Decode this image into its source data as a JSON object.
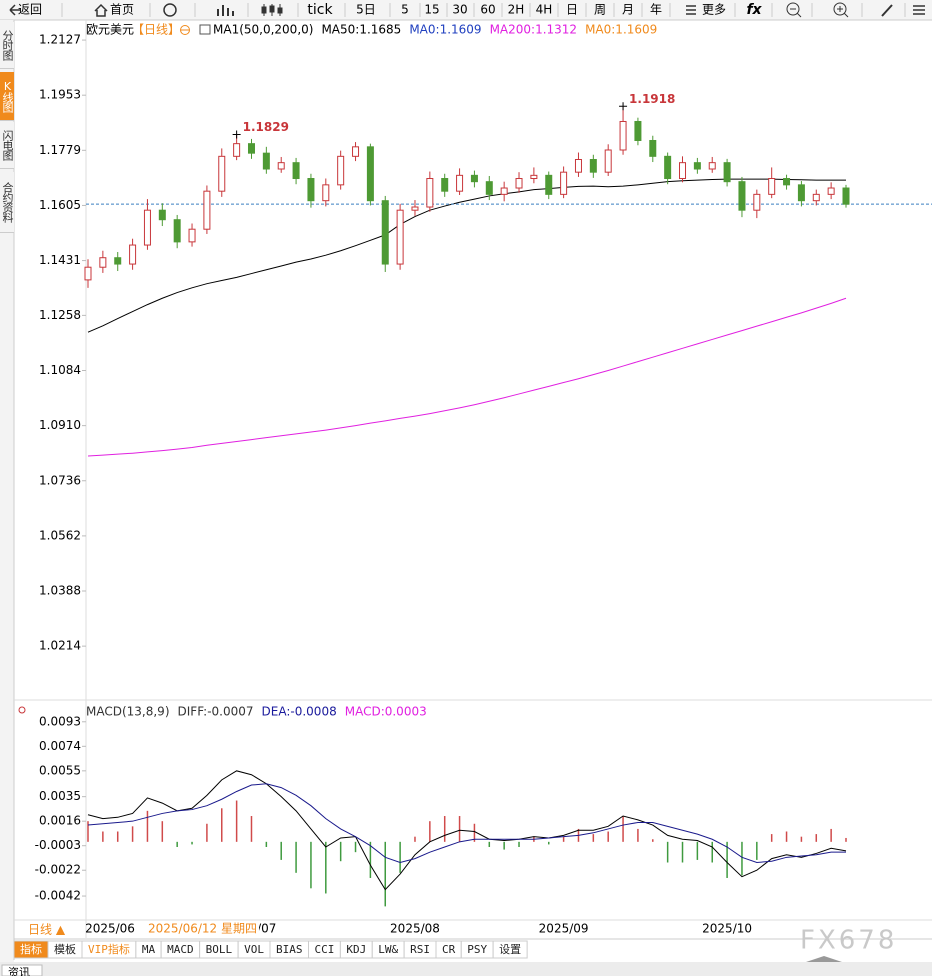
{
  "toolbar": [
    "返回",
    "首页",
    "tick",
    "5日",
    "5",
    "15",
    "30",
    "60",
    "2H",
    "4H",
    "日",
    "周",
    "月",
    "年",
    "更多"
  ],
  "sidebar": [
    "分时图",
    "K线图",
    "闪电图",
    "合约资料"
  ],
  "chart_data": [
    {
      "type": "candlestick",
      "title": "欧元美元",
      "period": "【日线】",
      "legend": [
        {
          "text": "MA1(50,0,200,0)",
          "color": "#000000"
        },
        {
          "text": "MA50:1.1685",
          "color": "#000000"
        },
        {
          "text": "MA0:1.1609",
          "color": "#1f3fbf"
        },
        {
          "text": "MA200:1.1312",
          "color": "#e020e0"
        },
        {
          "text": "MA0:1.1609",
          "color": "#f08a1c"
        }
      ],
      "categories": [
        "2025/06",
        null,
        null,
        null,
        null,
        null,
        null,
        null,
        null,
        null,
        null,
        "2025/07",
        null,
        null,
        null,
        null,
        null,
        null,
        null,
        null,
        null,
        null,
        "2025/08",
        null,
        null,
        null,
        null,
        null,
        null,
        null,
        null,
        null,
        "2025/09",
        null,
        null,
        null,
        null,
        null,
        null,
        null,
        null,
        null,
        null,
        "2025/10",
        null,
        null,
        null,
        null,
        null,
        null,
        null,
        null
      ],
      "open": [
        1.137,
        1.141,
        1.144,
        1.142,
        1.148,
        1.159,
        1.156,
        1.149,
        1.153,
        1.165,
        1.176,
        1.18,
        1.177,
        1.172,
        1.174,
        1.169,
        1.162,
        1.167,
        1.176,
        1.179,
        1.162,
        1.142,
        1.159,
        1.16,
        1.169,
        1.165,
        1.17,
        1.168,
        1.164,
        1.166,
        1.169,
        1.17,
        1.164,
        1.171,
        1.175,
        1.171,
        1.178,
        1.187,
        1.181,
        1.176,
        1.169,
        1.174,
        1.172,
        1.174,
        1.168,
        1.159,
        1.164,
        1.169,
        1.167,
        1.162,
        1.164,
        1.166
      ],
      "high": [
        1.1435,
        1.1462,
        1.1458,
        1.15,
        1.1625,
        1.1612,
        1.1575,
        1.1548,
        1.1668,
        1.1785,
        1.1829,
        1.1815,
        1.179,
        1.1758,
        1.1755,
        1.1705,
        1.169,
        1.1778,
        1.1805,
        1.18,
        1.1635,
        1.161,
        1.1622,
        1.1712,
        1.1705,
        1.1722,
        1.1715,
        1.1698,
        1.168,
        1.171,
        1.1725,
        1.1712,
        1.1728,
        1.1772,
        1.1765,
        1.1798,
        1.1918,
        1.1882,
        1.1825,
        1.1772,
        1.176,
        1.1755,
        1.1758,
        1.1752,
        1.1695,
        1.1655,
        1.1725,
        1.1702,
        1.1682,
        1.1655,
        1.1678,
        1.167
      ],
      "low": [
        1.1345,
        1.1392,
        1.1398,
        1.1402,
        1.1465,
        1.154,
        1.147,
        1.1475,
        1.1515,
        1.1632,
        1.1748,
        1.1752,
        1.1705,
        1.1708,
        1.1672,
        1.1598,
        1.1602,
        1.1655,
        1.1745,
        1.1605,
        1.1395,
        1.1402,
        1.1572,
        1.1585,
        1.1632,
        1.1638,
        1.1662,
        1.1622,
        1.1618,
        1.1645,
        1.1675,
        1.1625,
        1.1628,
        1.1695,
        1.1692,
        1.1698,
        1.1765,
        1.1795,
        1.1742,
        1.1672,
        1.1678,
        1.1705,
        1.1708,
        1.1665,
        1.1568,
        1.1565,
        1.1628,
        1.1655,
        1.1602,
        1.1605,
        1.1625,
        1.1598
      ],
      "close": [
        1.141,
        1.144,
        1.142,
        1.148,
        1.159,
        1.156,
        1.149,
        1.153,
        1.165,
        1.176,
        1.18,
        1.177,
        1.172,
        1.174,
        1.169,
        1.162,
        1.167,
        1.176,
        1.179,
        1.162,
        1.142,
        1.159,
        1.16,
        1.169,
        1.165,
        1.17,
        1.168,
        1.164,
        1.166,
        1.169,
        1.17,
        1.164,
        1.171,
        1.175,
        1.171,
        1.178,
        1.187,
        1.181,
        1.176,
        1.169,
        1.174,
        1.172,
        1.174,
        1.168,
        1.159,
        1.164,
        1.169,
        1.167,
        1.162,
        1.164,
        1.166,
        1.1609
      ],
      "up_color": "#c8363a",
      "down_color": "#4e9a34",
      "series": [
        {
          "color": "#000000",
          "values": [
            1.1205,
            1.1225,
            1.1248,
            1.127,
            1.1292,
            1.1312,
            1.133,
            1.1345,
            1.1358,
            1.1368,
            1.1378,
            1.139,
            1.1402,
            1.1414,
            1.1426,
            1.1436,
            1.1448,
            1.1462,
            1.1478,
            1.1495,
            1.1512,
            1.1545,
            1.157,
            1.159,
            1.1603,
            1.1615,
            1.1625,
            1.1635,
            1.1642,
            1.1648,
            1.1655,
            1.1658,
            1.1662,
            1.1665,
            1.1666,
            1.1664,
            1.1666,
            1.167,
            1.1675,
            1.168,
            1.1683,
            1.1685,
            1.1687,
            1.1688,
            1.1688,
            1.1688,
            1.1688,
            1.1687,
            1.1686,
            1.1685,
            1.1685,
            1.1685
          ]
        },
        {
          "color": "#e020e0",
          "values": [
            1.0814,
            1.0817,
            1.082,
            1.0823,
            1.0827,
            1.0831,
            1.0836,
            1.0841,
            1.0848,
            1.0854,
            1.086,
            1.0866,
            1.0872,
            1.0878,
            1.0884,
            1.089,
            1.0896,
            1.0903,
            1.091,
            1.0918,
            1.0925,
            1.0933,
            1.094,
            1.0948,
            1.0957,
            1.0966,
            1.0976,
            1.0987,
            1.0998,
            1.101,
            1.1022,
            1.1034,
            1.1046,
            1.1058,
            1.1071,
            1.1084,
            1.1098,
            1.1112,
            1.1126,
            1.114,
            1.1154,
            1.1168,
            1.1182,
            1.1196,
            1.121,
            1.1224,
            1.1238,
            1.1252,
            1.1266,
            1.1281,
            1.1296,
            1.1312
          ]
        }
      ],
      "last_price": 1.1609,
      "last_price_color": "#3a7fc0",
      "annotations": [
        1.1829,
        1.1918
      ],
      "annotation_color": "#c8363a",
      "cursor_date": "2025/06/12 星期四",
      "ylim": [
        1.0044,
        1.2184
      ],
      "yticks": [
        1.2127,
        1.1953,
        1.1779,
        1.1605,
        1.1431,
        1.1258,
        1.1084,
        {
          "value": 1.091,
          "label": "1.0910"
        },
        1.0736,
        1.0562,
        1.0388,
        1.0214
      ]
    },
    {
      "type": "macd",
      "legend": [
        {
          "text": "MACD(13,8,9)",
          "color": "#333333"
        },
        {
          "text": "DIFF:-0.0007",
          "color": "#333333"
        },
        {
          "text": "DEA:-0.0008",
          "color": "#1a1a9c"
        },
        {
          "text": "MACD:0.0003",
          "color": "#e020e0"
        }
      ],
      "series": [
        {
          "color": "#000000",
          "values": [
            0.0021,
            0.0018,
            0.0019,
            0.0022,
            0.0034,
            0.003,
            0.0024,
            0.0026,
            0.0036,
            0.0048,
            0.0055,
            0.0052,
            0.0045,
            0.0035,
            0.0024,
            0.001,
            -0.0004,
            0.0003,
            0.0004,
            -0.0018,
            -0.0037,
            -0.0025,
            -0.001,
            0.0,
            0.0005,
            0.0009,
            0.0008,
            0.0002,
            0.0001,
            0.0002,
            0.0004,
            0.0003,
            0.0005,
            0.0009,
            0.0009,
            0.0012,
            0.002,
            0.0017,
            0.0013,
            0.0005,
            0.0002,
            0.0001,
            -0.0004,
            -0.0016,
            -0.0027,
            -0.0022,
            -0.0013,
            -0.001,
            -0.0012,
            -0.0009,
            -0.0005,
            -0.0007
          ]
        },
        {
          "color": "#1a1a8c",
          "values": [
            0.0013,
            0.0014,
            0.0015,
            0.0016,
            0.0019,
            0.0022,
            0.0024,
            0.0025,
            0.0028,
            0.0033,
            0.0039,
            0.0044,
            0.0045,
            0.0042,
            0.0036,
            0.0028,
            0.0018,
            0.001,
            0.0004,
            -0.0003,
            -0.0012,
            -0.0016,
            -0.0013,
            -0.0008,
            -0.0004,
            0.0,
            0.0002,
            0.0002,
            0.0002,
            0.0002,
            0.0002,
            0.0003,
            0.0004,
            0.0005,
            0.0007,
            0.001,
            0.0013,
            0.0015,
            0.0015,
            0.0012,
            0.0009,
            0.0006,
            0.0002,
            -0.0004,
            -0.0012,
            -0.0016,
            -0.0015,
            -0.0012,
            -0.0011,
            -0.001,
            -0.0008,
            -0.0008
          ]
        }
      ],
      "histogram": {
        "up_color": "#d04a4a",
        "down_color": "#3f9a3f",
        "values": [
          0.0016,
          0.0008,
          0.0008,
          0.0012,
          0.0024,
          0.0016,
          -0.0004,
          -0.0002,
          0.0014,
          0.0026,
          0.0032,
          0.002,
          -0.0004,
          -0.0014,
          -0.0024,
          -0.0036,
          -0.004,
          -0.0015,
          -0.0008,
          -0.0028,
          -0.005,
          -0.0024,
          0.0004,
          0.0016,
          0.002,
          0.002,
          0.0014,
          -0.0004,
          -0.0006,
          -0.0004,
          0.0004,
          -0.0002,
          0.0004,
          0.001,
          0.0006,
          0.0008,
          0.002,
          0.001,
          0.0002,
          -0.0016,
          -0.0016,
          -0.0014,
          -0.0016,
          -0.0028,
          -0.0026,
          -0.0014,
          0.0006,
          0.0008,
          0.0004,
          0.0006,
          0.001,
          0.0003
        ]
      },
      "ylim": [
        -0.0059,
        0.0106
      ],
      "yticks": [
        0.0093,
        0.0074,
        0.0055,
        0.0035,
        0.0016,
        -0.0003,
        -0.0022,
        -0.0042
      ]
    }
  ],
  "footer": {
    "period": "日线 ▲",
    "tabs": [
      "指标",
      "模板",
      "VIP指标",
      "MA",
      "MACD",
      "BOLL",
      "VOL",
      "BIAS",
      "CCI",
      "KDJ",
      "LW&",
      "RSI",
      "CR",
      "PSY",
      "设置"
    ],
    "watermark": "FX678",
    "bottom_tab": "资讯"
  }
}
